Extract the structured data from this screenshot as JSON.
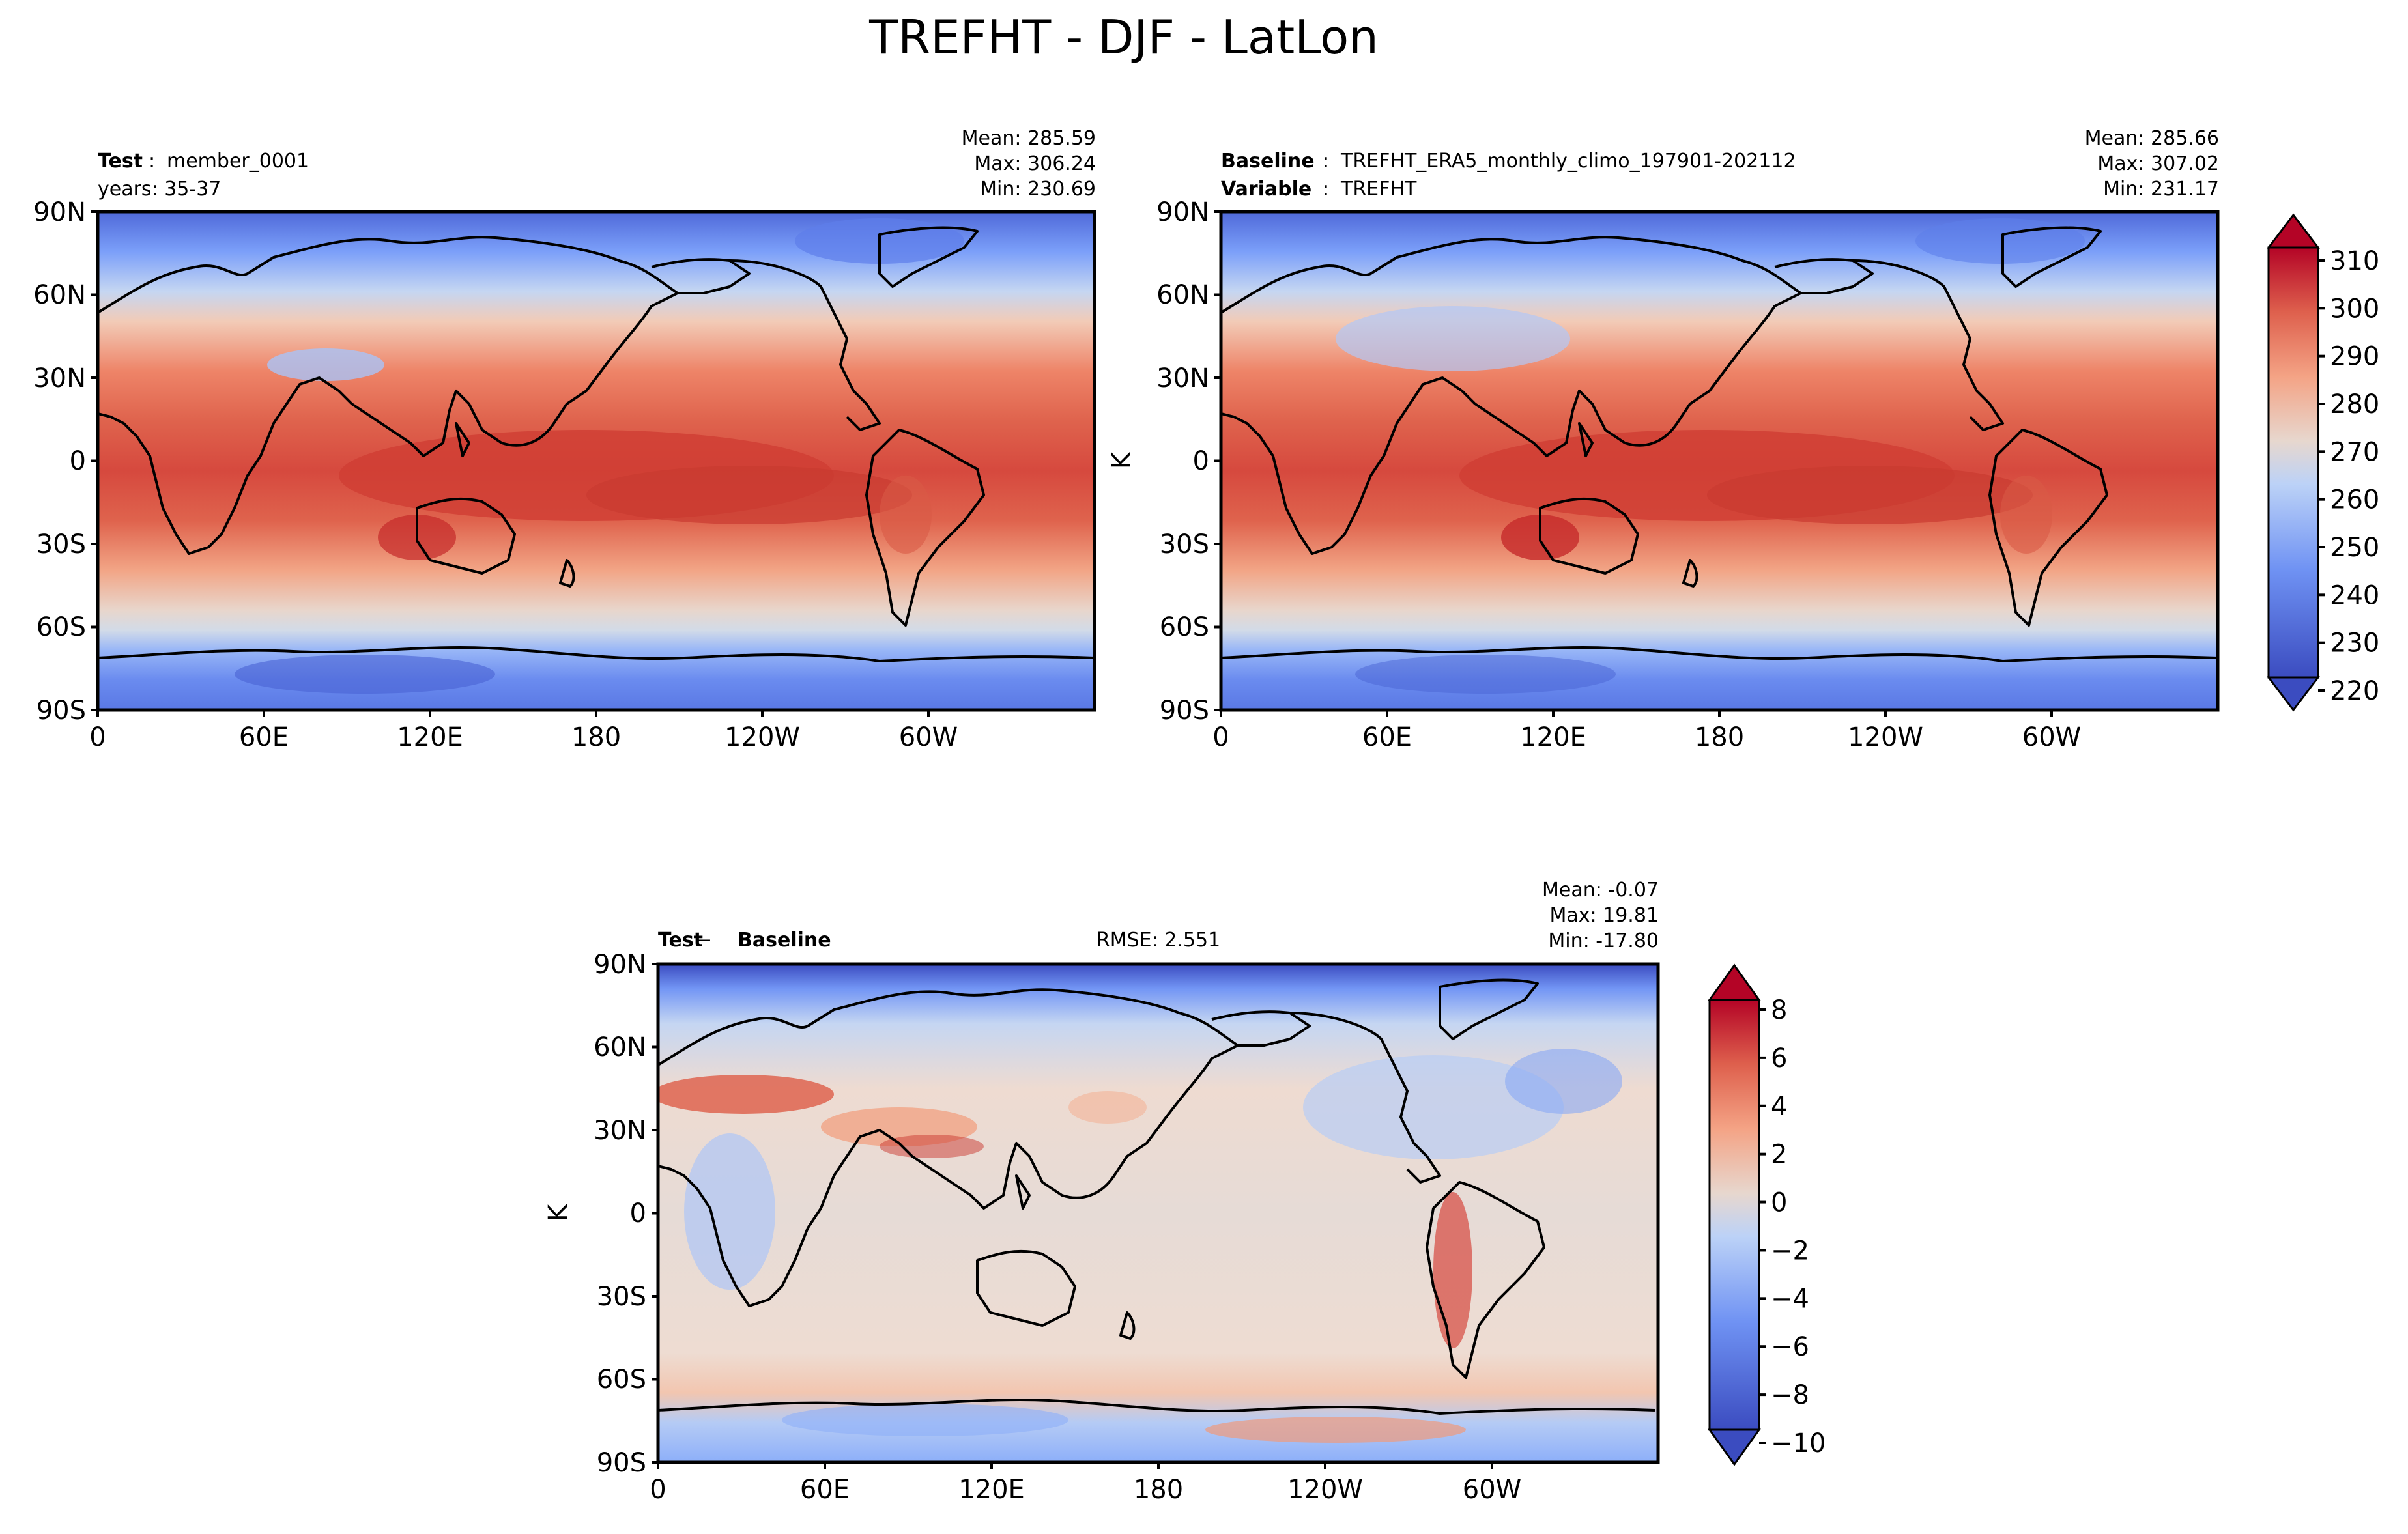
{
  "figure": {
    "title": "TREFHT - DJF - LatLon"
  },
  "chart_data": [
    {
      "type": "heatmap",
      "panel": "test",
      "header_left": {
        "label": "Test",
        "sep": ": ",
        "value": "member_0001",
        "line2": "years: 35-37"
      },
      "stats": {
        "mean": "Mean: 285.59",
        "max": "Max: 306.24",
        "min": "Min: 230.69"
      },
      "x_ticks": [
        "0",
        "60E",
        "120E",
        "180",
        "120W",
        "60W"
      ],
      "y_ticks": [
        "90N",
        "60N",
        "30N",
        "0",
        "30S",
        "60S",
        "90S"
      ],
      "x_range": [
        0,
        360
      ],
      "y_range": [
        -90,
        90
      ],
      "units": "K"
    },
    {
      "type": "heatmap",
      "panel": "baseline",
      "header_left": {
        "label": "Baseline",
        "sep": ": ",
        "value": "TREFHT_ERA5_monthly_climo_197901-202112",
        "label2": "Variable",
        "sep2": ": ",
        "value2": "TREFHT"
      },
      "stats": {
        "mean": "Mean: 285.66",
        "max": "Max: 307.02",
        "min": "Min: 231.17"
      },
      "x_ticks": [
        "0",
        "60E",
        "120E",
        "180",
        "120W",
        "60W"
      ],
      "y_ticks": [
        "90N",
        "60N",
        "30N",
        "0",
        "30S",
        "60S",
        "90S"
      ],
      "ylabel": "K",
      "colorbar": {
        "ticks": [
          "220",
          "230",
          "240",
          "250",
          "260",
          "270",
          "280",
          "290",
          "300",
          "310"
        ],
        "range": [
          220,
          315
        ]
      }
    },
    {
      "type": "heatmap",
      "panel": "difference",
      "header_left": {
        "label": "Test",
        "sep": " − ",
        "value": "Baseline"
      },
      "rmse": "RMSE: 2.551",
      "stats": {
        "mean": "Mean: -0.07",
        "max": "Max: 19.81",
        "min": "Min: -17.80"
      },
      "x_ticks": [
        "0",
        "60E",
        "120E",
        "180",
        "120W",
        "60W"
      ],
      "y_ticks": [
        "90N",
        "60N",
        "30N",
        "0",
        "30S",
        "60S",
        "90S"
      ],
      "ylabel": "K",
      "colorbar": {
        "ticks": [
          "8",
          "6",
          "4",
          "2",
          "0",
          "−2",
          "−4",
          "−6",
          "−8",
          "−10"
        ],
        "range": [
          -10,
          9
        ]
      }
    }
  ],
  "colors": {
    "red_top": "#b40426",
    "red": "#d6493e",
    "salmon": "#f08b6e",
    "peach": "#f5c0a7",
    "light": "#e3dcd8",
    "pale_blue": "#c5d6f2",
    "blue": "#8daff9",
    "blue_mid": "#6687ed",
    "blue_dark": "#3b4cc0"
  }
}
